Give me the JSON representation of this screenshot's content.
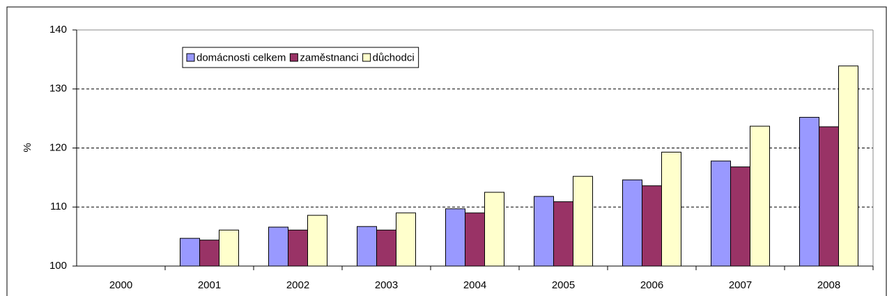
{
  "chart_data": {
    "type": "bar",
    "ylabel": "%",
    "categories": [
      "2000",
      "2001",
      "2002",
      "2003",
      "2004",
      "2005",
      "2006",
      "2007",
      "2008"
    ],
    "series": [
      {
        "name": "domácnosti celkem",
        "color": "#9999ff",
        "values": [
          100,
          104.7,
          106.6,
          106.7,
          109.7,
          111.8,
          114.6,
          117.8,
          125.2
        ]
      },
      {
        "name": "zaměstnanci",
        "color": "#993366",
        "values": [
          100,
          104.4,
          106.1,
          106.1,
          109.0,
          110.9,
          113.6,
          116.8,
          123.6
        ]
      },
      {
        "name": "důchodci",
        "color": "#ffffcc",
        "values": [
          100,
          106.1,
          108.6,
          109.0,
          112.5,
          115.2,
          119.3,
          123.7,
          133.9
        ]
      }
    ],
    "ylim": [
      100,
      140
    ],
    "yticks": [
      100,
      110,
      120,
      130,
      140
    ],
    "grid": true,
    "legend": "top-left"
  }
}
